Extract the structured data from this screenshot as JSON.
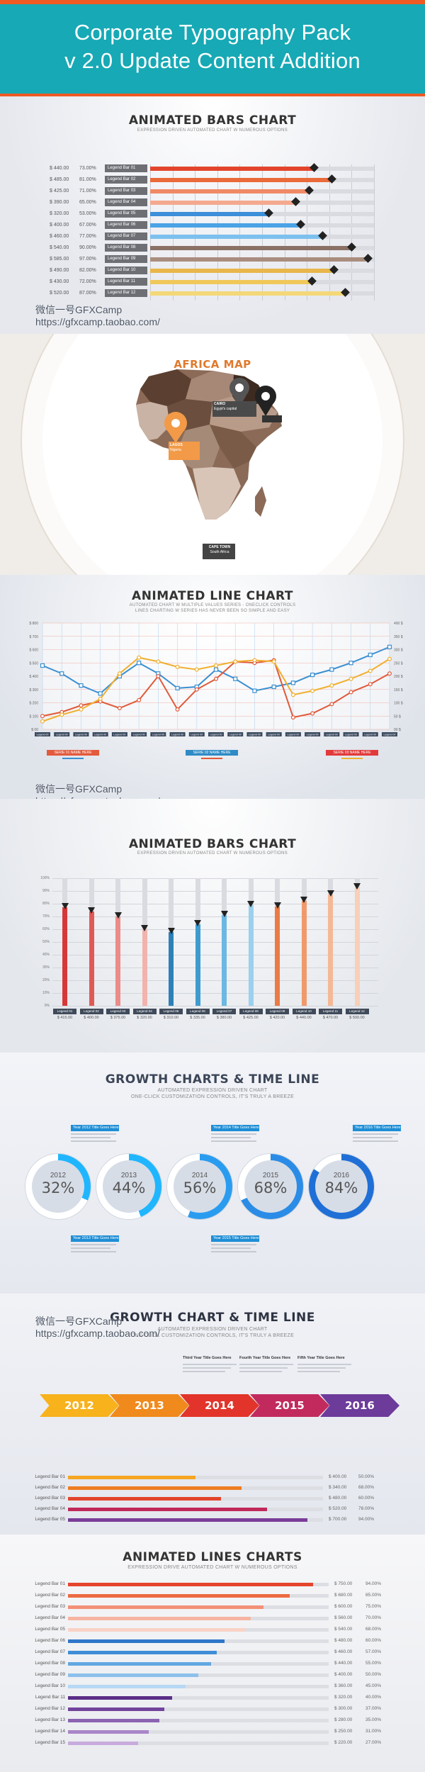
{
  "header": {
    "line1": "Corporate Typography Pack",
    "line2": "v 2.0 Update Content Addition"
  },
  "watermark": {
    "line1": "微信一号GFXCamp",
    "line2": "https://gfxcamp.taobao.com/"
  },
  "bars1": {
    "title": "ANIMATED BARS CHART",
    "subtitle": "EXPRESSION DRIVEN AUTOMATED CHART W NUMEROUS OPTIONS",
    "rows": [
      {
        "value": "$ 440.00",
        "pct": "73.00%",
        "label": "Legend Bar 01",
        "fill": 0.73,
        "color": "#e2452c"
      },
      {
        "value": "$ 485.00",
        "pct": "81.00%",
        "label": "Legend Bar 02",
        "fill": 0.81,
        "color": "#ea6a3a"
      },
      {
        "value": "$ 425.00",
        "pct": "71.00%",
        "label": "Legend Bar 03",
        "fill": 0.71,
        "color": "#f08a66"
      },
      {
        "value": "$ 390.00",
        "pct": "65.00%",
        "label": "Legend Bar 04",
        "fill": 0.65,
        "color": "#f4a98f"
      },
      {
        "value": "$ 320.00",
        "pct": "53.00%",
        "label": "Legend Bar 05",
        "fill": 0.53,
        "color": "#3c8fd8"
      },
      {
        "value": "$ 400.00",
        "pct": "67.00%",
        "label": "Legend Bar 06",
        "fill": 0.67,
        "color": "#4aa3e6"
      },
      {
        "value": "$ 460.00",
        "pct": "77.00%",
        "label": "Legend Bar 07",
        "fill": 0.77,
        "color": "#7cc0ee"
      },
      {
        "value": "$ 540.00",
        "pct": "90.00%",
        "label": "Legend Bar 08",
        "fill": 0.9,
        "color": "#8a7065"
      },
      {
        "value": "$ 585.00",
        "pct": "97.00%",
        "label": "Legend Bar 09",
        "fill": 0.97,
        "color": "#a98d7e"
      },
      {
        "value": "$ 490.00",
        "pct": "82.00%",
        "label": "Legend Bar 10",
        "fill": 0.82,
        "color": "#e8b64a"
      },
      {
        "value": "$ 430.00",
        "pct": "72.00%",
        "label": "Legend Bar 11",
        "fill": 0.72,
        "color": "#f0c85a"
      },
      {
        "value": "$ 520.00",
        "pct": "87.00%",
        "label": "Legend Bar 12",
        "fill": 0.87,
        "color": "#f4d878"
      }
    ]
  },
  "africa": {
    "title": "AFRICA MAP",
    "pins": [
      {
        "city": "CAIRO",
        "note": "Egypt's capital"
      },
      {
        "city": "LAGOS",
        "note": "Nigeria"
      },
      {
        "city": "CAPE TOWN",
        "note": "South Africa"
      }
    ]
  },
  "line_chart": {
    "title": "ANIMATED LINE CHART",
    "subtitle1": "AUTOMATED CHART W MULTIPLE VALUES SERIES - ONECLICK CONTROLS",
    "subtitle2": "LINES CHARTING W SERIES HAS NEVER BEEN SO SIMPLE AND EASY",
    "left_ticks": [
      "$ 800",
      "$ 700",
      "$ 600",
      "$ 500",
      "$ 400",
      "$ 300",
      "$ 200",
      "$ 100",
      "$ 00"
    ],
    "right_ticks": [
      "400 $",
      "350 $",
      "300 $",
      "250 $",
      "200 $",
      "150 $",
      "100 $",
      "50 $",
      "00 $"
    ],
    "legend": [
      "SERIE 01 NAME HERE",
      "SERIE 02 NAME HERE",
      "SERIE 03 NAME HERE"
    ],
    "x_label": "Legend 00",
    "series": [
      {
        "color": "#3a8fd1",
        "values": [
          480,
          420,
          330,
          270,
          400,
          500,
          420,
          310,
          320,
          450,
          380,
          290,
          320,
          350,
          410,
          450,
          500,
          560,
          620
        ]
      },
      {
        "color": "#e05a3a",
        "values": [
          100,
          130,
          180,
          210,
          160,
          220,
          400,
          150,
          300,
          380,
          510,
          500,
          520,
          90,
          120,
          190,
          280,
          340,
          420
        ]
      },
      {
        "color": "#f0b030",
        "values": [
          60,
          110,
          150,
          230,
          420,
          540,
          510,
          470,
          450,
          480,
          510,
          520,
          510,
          260,
          290,
          330,
          380,
          440,
          530
        ]
      }
    ]
  },
  "vbars": {
    "title": "ANIMATED BARS CHART",
    "subtitle": "EXPRESSION DRIVEN AUTOMATED CHART W NUMEROUS OPTIONS",
    "y_ticks": [
      "100%",
      "90%",
      "80%",
      "70%",
      "60%",
      "50%",
      "40%",
      "30%",
      "20%",
      "10%",
      "0%"
    ],
    "bars": [
      {
        "label": "Legend 01",
        "value": "$ 415.00",
        "fill": 0.77,
        "color": "#d6383a"
      },
      {
        "label": "Legend 02",
        "value": "$ 400.00",
        "fill": 0.74,
        "color": "#e05a55"
      },
      {
        "label": "Legend 03",
        "value": "$ 375.00",
        "fill": 0.7,
        "color": "#eb8c88"
      },
      {
        "label": "Legend 04",
        "value": "$ 320.00",
        "fill": 0.6,
        "color": "#f2b3ad"
      },
      {
        "label": "Legend 05",
        "value": "$ 310.00",
        "fill": 0.58,
        "color": "#2d80b8"
      },
      {
        "label": "Legend 06",
        "value": "$ 335.00",
        "fill": 0.64,
        "color": "#3e9bd0"
      },
      {
        "label": "Legend 07",
        "value": "$ 380.00",
        "fill": 0.71,
        "color": "#6cb8e2"
      },
      {
        "label": "Legend 08",
        "value": "$ 425.00",
        "fill": 0.79,
        "color": "#9bd0ee"
      },
      {
        "label": "Legend 09",
        "value": "$ 420.00",
        "fill": 0.78,
        "color": "#ea7b45"
      },
      {
        "label": "Legend 10",
        "value": "$ 440.00",
        "fill": 0.82,
        "color": "#f09a6c"
      },
      {
        "label": "Legend 11",
        "value": "$ 470.00",
        "fill": 0.87,
        "color": "#f5b895"
      },
      {
        "label": "Legend 12",
        "value": "$ 500.00",
        "fill": 0.93,
        "color": "#f8cfb8"
      }
    ]
  },
  "growth": {
    "title": "GROWTH CHARTS & TIME LINE",
    "subtitle1": "AUTOMATED EXPRESSION DRIVEN CHART",
    "subtitle2": "ONE-CLICK CUSTOMIZATION CONTROLS, IT'S TRULY A BREEZE",
    "circles": [
      {
        "year": "2012",
        "pct": "32%",
        "fill": 0.32,
        "color": "#1fb6ff"
      },
      {
        "year": "2013",
        "pct": "44%",
        "fill": 0.44,
        "color": "#1fb6ff"
      },
      {
        "year": "2014",
        "pct": "56%",
        "fill": 0.56,
        "color": "#2a9cf0"
      },
      {
        "year": "2015",
        "pct": "68%",
        "fill": 0.68,
        "color": "#2a8ce6"
      },
      {
        "year": "2016",
        "pct": "84%",
        "fill": 0.84,
        "color": "#1f6fd6"
      }
    ],
    "tips": [
      "Year 2012 Title Goes Here",
      "Year 2013 Title Goes Here",
      "Year 2014 Title Goes Here",
      "Year 2015 Title Goes Here",
      "Year 2016 Title Goes Here"
    ]
  },
  "timeline": {
    "title": "GROWTH CHART & TIME LINE",
    "subtitle1": "AUTOMATED EXPRESSION DRIVEN CHART",
    "subtitle2": "ONE-CLICK CUSTOMIZATION CONTROLS, IT'S TRULY A BREEZE",
    "tips": [
      "Third Year Title Goes Here",
      "Fourth Year Title Goes Here",
      "Fifth Year Title Goes Here"
    ],
    "arrows": [
      {
        "year": "2012",
        "color": "#f7b21c"
      },
      {
        "year": "2013",
        "color": "#f08a1c"
      },
      {
        "year": "2014",
        "color": "#e2342a"
      },
      {
        "year": "2015",
        "color": "#c22a5e"
      },
      {
        "year": "2016",
        "color": "#6d3b9a"
      }
    ],
    "rows": [
      {
        "label": "Legend Bar 01",
        "value": "$ 400.00",
        "pct": "50.00%",
        "fill": 0.5,
        "color": "#f5a623"
      },
      {
        "label": "Legend Bar 02",
        "value": "$ 340.00",
        "pct": "68.00%",
        "fill": 0.68,
        "color": "#ef7d22"
      },
      {
        "label": "Legend Bar 03",
        "value": "$ 480.00",
        "pct": "60.00%",
        "fill": 0.6,
        "color": "#e2452c"
      },
      {
        "label": "Legend Bar 04",
        "value": "$ 520.00",
        "pct": "78.00%",
        "fill": 0.78,
        "color": "#c1285a"
      },
      {
        "label": "Legend Bar 05",
        "value": "$ 700.00",
        "pct": "94.00%",
        "fill": 0.94,
        "color": "#7a3d98"
      }
    ]
  },
  "lines": {
    "title": "ANIMATED LINES CHARTS",
    "subtitle": "EXPRESSION DRIVE AUTOMATED CHART W NUMEROUS OPTIONS",
    "rows": [
      {
        "label": "Legend Bar 01",
        "value": "$ 750.00",
        "pct": "94.00%",
        "fill": 0.94,
        "color": "#e5452c"
      },
      {
        "label": "Legend Bar 02",
        "value": "$ 680.00",
        "pct": "85.00%",
        "fill": 0.85,
        "color": "#ec6a42"
      },
      {
        "label": "Legend Bar 03",
        "value": "$ 600.00",
        "pct": "75.00%",
        "fill": 0.75,
        "color": "#f29177"
      },
      {
        "label": "Legend Bar 04",
        "value": "$ 560.00",
        "pct": "70.00%",
        "fill": 0.7,
        "color": "#f6b5a2"
      },
      {
        "label": "Legend Bar 05",
        "value": "$ 540.00",
        "pct": "68.00%",
        "fill": 0.68,
        "color": "#f9d2c6"
      },
      {
        "label": "Legend Bar 06",
        "value": "$ 480.00",
        "pct": "60.00%",
        "fill": 0.6,
        "color": "#2e76c8"
      },
      {
        "label": "Legend Bar 07",
        "value": "$ 460.00",
        "pct": "57.00%",
        "fill": 0.57,
        "color": "#3f8ed6"
      },
      {
        "label": "Legend Bar 08",
        "value": "$ 440.00",
        "pct": "55.00%",
        "fill": 0.55,
        "color": "#62a8e2"
      },
      {
        "label": "Legend Bar 09",
        "value": "$ 400.00",
        "pct": "50.00%",
        "fill": 0.5,
        "color": "#8cc0ec"
      },
      {
        "label": "Legend Bar 10",
        "value": "$ 360.00",
        "pct": "45.00%",
        "fill": 0.45,
        "color": "#b6d8f4"
      },
      {
        "label": "Legend Bar 11",
        "value": "$ 320.00",
        "pct": "40.00%",
        "fill": 0.4,
        "color": "#5a2d86"
      },
      {
        "label": "Legend Bar 12",
        "value": "$ 300.00",
        "pct": "37.00%",
        "fill": 0.37,
        "color": "#72449c"
      },
      {
        "label": "Legend Bar 13",
        "value": "$ 280.00",
        "pct": "35.00%",
        "fill": 0.35,
        "color": "#8c63b2"
      },
      {
        "label": "Legend Bar 14",
        "value": "$ 250.00",
        "pct": "31.00%",
        "fill": 0.31,
        "color": "#a986c8"
      },
      {
        "label": "Legend Bar 15",
        "value": "$ 220.00",
        "pct": "27.00%",
        "fill": 0.27,
        "color": "#c8abdc"
      }
    ]
  }
}
